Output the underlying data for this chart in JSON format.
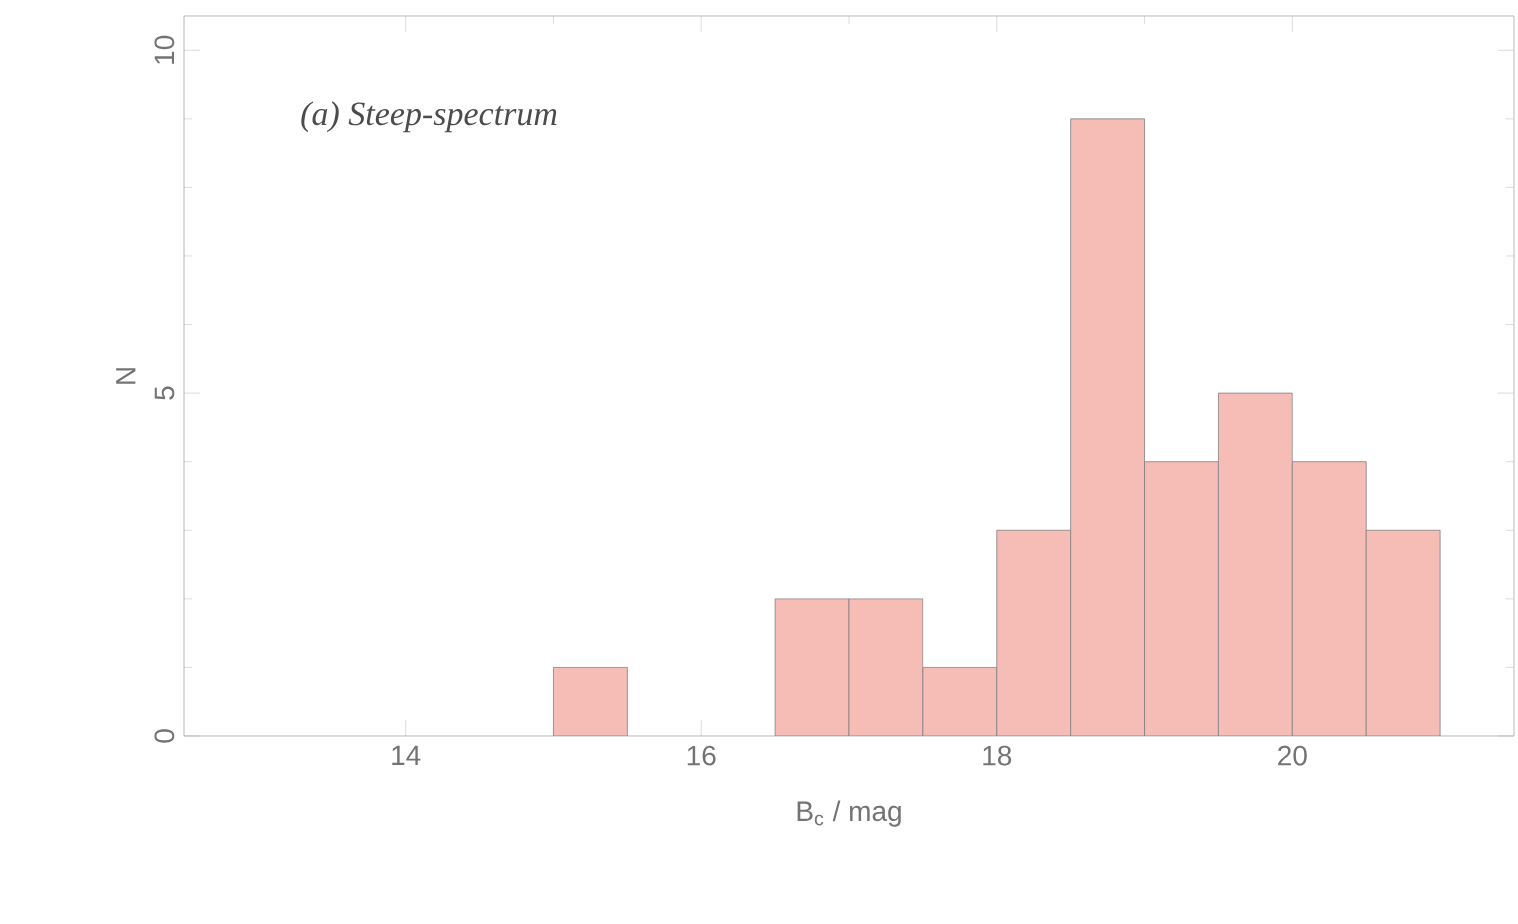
{
  "chart_data": {
    "type": "histogram",
    "bins": [
      15,
      15.5,
      16,
      16.5,
      17,
      17.5,
      18,
      18.5,
      19,
      19.5,
      20,
      20.5,
      21
    ],
    "values": [
      1,
      0,
      0,
      2,
      2,
      1,
      3,
      9,
      4,
      5,
      4,
      3
    ],
    "color": "#f6bcb6",
    "xlim": [
      12.5,
      21.5
    ],
    "ylim": [
      0,
      10.5
    ],
    "xticks": [
      14,
      16,
      18,
      20
    ],
    "yticks": [
      0,
      5,
      10
    ],
    "xlabel": "B$_{c}$ / mag",
    "ylabel": "N",
    "annotations": [
      "*(a) Steep-spectrum*"
    ],
    "grid": false
  }
}
